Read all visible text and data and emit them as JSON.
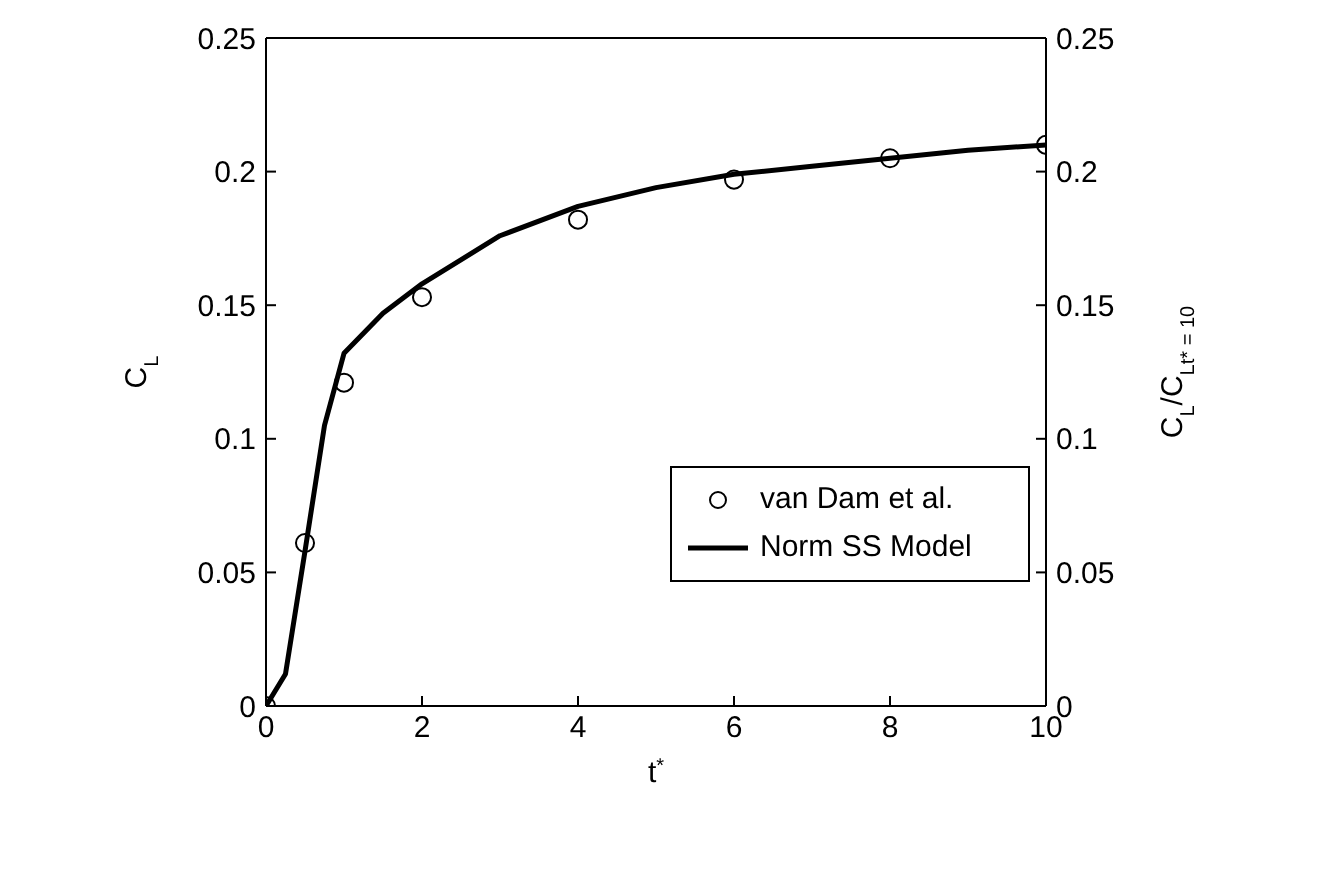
{
  "chart_data": {
    "type": "scatter",
    "xlabel": "t$^{*}$",
    "ylabel": "C$_{L}$",
    "y2label": "C$_{L}$/C$_{L}$$_{t* = 10}$",
    "xlim": [
      0,
      10
    ],
    "xticks": [
      0,
      2,
      4,
      6,
      8,
      10
    ],
    "ylim": [
      0,
      0.25
    ],
    "yticks": [
      0,
      0.05,
      0.1,
      0.15,
      0.2,
      0.25
    ],
    "y2lim": [
      0,
      0.25
    ],
    "y2ticks": [
      0,
      0.05,
      0.1,
      0.15,
      0.2,
      0.25
    ],
    "grid": false,
    "legend": "right",
    "series": [
      {
        "name": "van Dam et al.",
        "marker": "circle",
        "color": "#000000",
        "x": [
          0,
          0.5,
          1,
          2,
          4,
          6,
          8,
          10
        ],
        "values": [
          0,
          0.061,
          0.121,
          0.153,
          0.182,
          0.197,
          0.205,
          0.21
        ]
      },
      {
        "name": "Norm SS Model",
        "type": "line",
        "marker": "none",
        "line_style": "solid",
        "color": "#000000",
        "x": [
          0,
          0.25,
          0.5,
          0.75,
          1,
          1.5,
          2,
          3,
          4,
          5,
          6,
          7,
          8,
          9,
          10
        ],
        "values": [
          0,
          0.012,
          0.058,
          0.105,
          0.132,
          0.147,
          0.158,
          0.176,
          0.187,
          0.194,
          0.199,
          0.202,
          0.205,
          0.208,
          0.21
        ]
      }
    ]
  }
}
